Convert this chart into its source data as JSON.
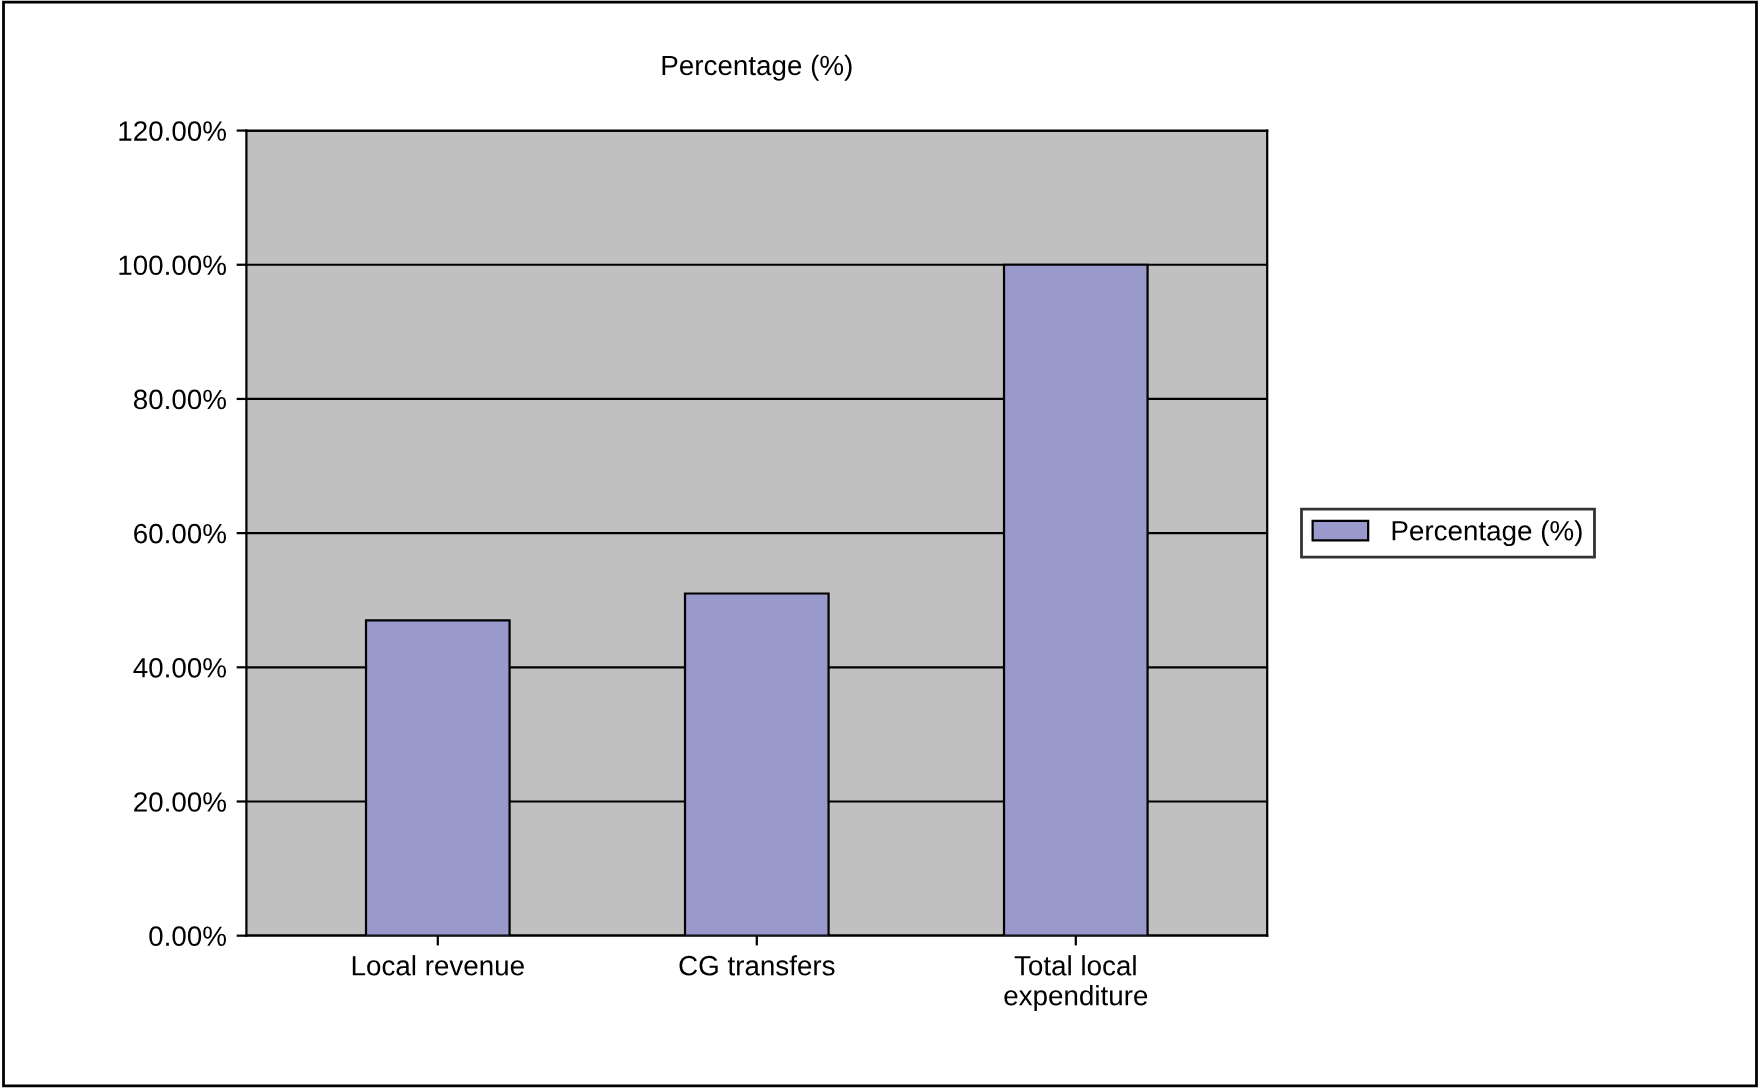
{
  "chart_data": {
    "type": "bar",
    "title": "Percentage (%)",
    "categories": [
      "Local revenue",
      "CG transfers",
      "Total local\nexpenditure"
    ],
    "series": [
      {
        "name": "Percentage (%)",
        "color": "#9999cc",
        "values": [
          47,
          51,
          100
        ]
      }
    ],
    "ylim": [
      0,
      120
    ],
    "yticks": [
      {
        "value": 0,
        "label": "0.00%"
      },
      {
        "value": 20,
        "label": "20.00%"
      },
      {
        "value": 40,
        "label": "40.00%"
      },
      {
        "value": 60,
        "label": "60.00%"
      },
      {
        "value": 80,
        "label": "80.00%"
      },
      {
        "value": 100,
        "label": "100.00%"
      },
      {
        "value": 120,
        "label": "120.00%"
      }
    ],
    "grid": "y",
    "legend": "right"
  }
}
